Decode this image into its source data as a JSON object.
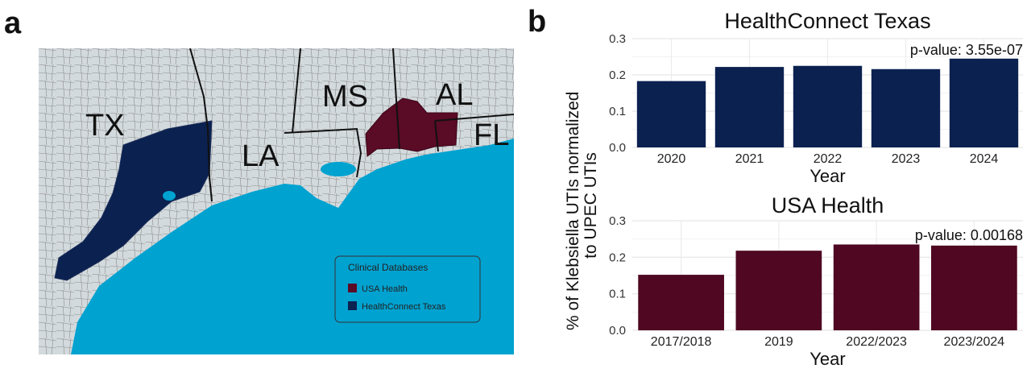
{
  "panel_a": {
    "letter": "a",
    "states": [
      "TX",
      "LA",
      "MS",
      "AL",
      "FL"
    ],
    "legend": {
      "title": "Clinical Databases",
      "items": [
        {
          "label": "USA Health",
          "color": "#5a0b25"
        },
        {
          "label": "HealthConnect Texas",
          "color": "#0b2150"
        }
      ]
    },
    "colors": {
      "land": "#d3dadd",
      "border": "#6f6f6f",
      "water": "#00a2d0"
    }
  },
  "panel_b": {
    "letter": "b",
    "y_label_line1": "% of Klebsiella UTIs normalized",
    "y_label_line2": "to UPEC UTIs"
  },
  "chart_data": [
    {
      "type": "bar",
      "title": "HealthConnect Texas",
      "xlabel": "Year",
      "ylabel": "% of Klebsiella UTIs normalized to UPEC UTIs",
      "categories": [
        "2020",
        "2021",
        "2022",
        "2023",
        "2024"
      ],
      "values": [
        0.183,
        0.222,
        0.225,
        0.216,
        0.245
      ],
      "ylim": [
        0,
        0.3
      ],
      "yticks": [
        "0.0",
        "0.1",
        "0.2",
        "0.3"
      ],
      "annotation": "p-value: 3.55e-07",
      "color": "#0b2150",
      "grid": true
    },
    {
      "type": "bar",
      "title": "USA Health",
      "xlabel": "Year",
      "ylabel": "% of Klebsiella UTIs normalized to UPEC UTIs",
      "categories": [
        "2017/2018",
        "2019",
        "2022/2023",
        "2023/2024"
      ],
      "values": [
        0.152,
        0.218,
        0.235,
        0.232
      ],
      "ylim": [
        0,
        0.3
      ],
      "yticks": [
        "0.0",
        "0.1",
        "0.2",
        "0.3"
      ],
      "annotation": "p-value: 0.00168",
      "color": "#4f0722",
      "grid": true
    }
  ]
}
